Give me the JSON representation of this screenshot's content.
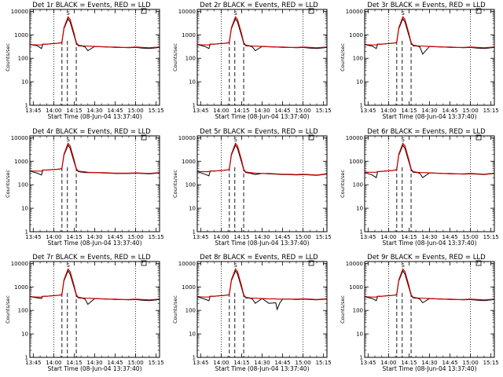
{
  "colors": {
    "events": "#000000",
    "lld": "#cc0000",
    "background": "#ffffff"
  },
  "shared": {
    "x_tick_labels": [
      "13:45",
      "14:00",
      "14:15",
      "14:30",
      "14:45",
      "15:00",
      "15:15"
    ],
    "x_ticks_minutes": [
      0,
      15,
      30,
      45,
      60,
      75,
      90
    ],
    "xlabel": "Start Time (08-Jun-04 13:37:40)",
    "ylabel": "Counts/sec",
    "y_tick_labels": [
      "1",
      "10",
      "100",
      "1000",
      "10000"
    ],
    "y_tick_values": [
      1,
      10,
      100,
      1000,
      10000
    ],
    "xlim_minutes": [
      -2.5,
      92.5
    ],
    "ylim": [
      1,
      12000
    ],
    "dotted_lines_minutes": [
      15,
      75
    ],
    "dashed_lines_minutes": [
      21,
      25,
      31.5
    ],
    "marker_S_label": "S",
    "marker_box_minutes": 81
  },
  "chart_data": [
    {
      "type": "line",
      "title": "Det 1r BLACK = Events, RED = LLD",
      "x": [
        -2.5,
        3,
        6,
        7,
        10,
        14,
        17,
        20,
        21,
        22.5,
        25.5,
        27,
        30,
        31.5,
        33,
        36,
        38,
        40,
        45,
        50,
        55,
        60,
        65,
        70,
        75,
        80,
        85,
        92.5
      ],
      "series": [
        {
          "name": "Events",
          "values": [
            380,
            340,
            260,
            400,
            400,
            420,
            430,
            450,
            480,
            1800,
            4800,
            3500,
            900,
            430,
            340,
            330,
            300,
            210,
            320,
            310,
            300,
            290,
            290,
            280,
            290,
            270,
            260,
            290
          ]
        },
        {
          "name": "LLD",
          "values": [
            380,
            370,
            370,
            400,
            400,
            420,
            430,
            450,
            490,
            2000,
            5800,
            4500,
            1100,
            460,
            360,
            340,
            330,
            330,
            320,
            310,
            300,
            300,
            290,
            290,
            300,
            290,
            280,
            300
          ]
        }
      ]
    },
    {
      "type": "line",
      "title": "Det 2r BLACK = Events, RED = LLD",
      "x": [
        -2.5,
        3,
        6,
        7,
        10,
        14,
        17,
        20,
        21,
        22.5,
        25.5,
        27,
        30,
        31.5,
        33,
        36,
        38,
        40,
        45,
        50,
        55,
        60,
        65,
        70,
        75,
        80,
        85,
        92.5
      ],
      "series": [
        {
          "name": "Events",
          "values": [
            380,
            320,
            260,
            400,
            400,
            420,
            430,
            450,
            480,
            1800,
            4800,
            3500,
            900,
            430,
            340,
            330,
            300,
            210,
            320,
            310,
            300,
            290,
            290,
            280,
            290,
            270,
            260,
            290
          ]
        },
        {
          "name": "LLD",
          "values": [
            380,
            370,
            370,
            400,
            400,
            420,
            430,
            450,
            490,
            2000,
            5800,
            4500,
            1100,
            460,
            360,
            340,
            330,
            330,
            320,
            310,
            300,
            300,
            290,
            290,
            300,
            290,
            280,
            300
          ]
        }
      ]
    },
    {
      "type": "line",
      "title": "Det 3r BLACK = Events, RED = LLD",
      "x": [
        -2.5,
        3,
        6,
        7,
        10,
        14,
        17,
        20,
        21,
        22.5,
        25.5,
        27,
        30,
        31.5,
        33,
        36,
        38,
        40,
        45,
        50,
        55,
        60,
        65,
        70,
        75,
        80,
        85,
        92.5
      ],
      "series": [
        {
          "name": "Events",
          "values": [
            380,
            330,
            260,
            400,
            400,
            420,
            430,
            450,
            480,
            1800,
            4800,
            3500,
            900,
            430,
            340,
            330,
            300,
            150,
            320,
            310,
            300,
            290,
            290,
            280,
            290,
            270,
            260,
            290
          ]
        },
        {
          "name": "LLD",
          "values": [
            380,
            370,
            370,
            400,
            400,
            420,
            430,
            450,
            490,
            2000,
            5800,
            4500,
            1100,
            460,
            360,
            340,
            330,
            330,
            320,
            310,
            300,
            300,
            290,
            290,
            300,
            290,
            280,
            300
          ]
        }
      ]
    },
    {
      "type": "line",
      "title": "Det 4r BLACK = Events, RED = LLD",
      "x": [
        -2.5,
        3,
        6,
        7,
        10,
        14,
        17,
        20,
        21,
        22.5,
        25.5,
        27,
        30,
        31.5,
        33,
        36,
        38,
        40,
        45,
        50,
        55,
        60,
        65,
        70,
        75,
        80,
        85,
        92.5
      ],
      "series": [
        {
          "name": "Events",
          "values": [
            380,
            310,
            260,
            420,
            420,
            440,
            450,
            470,
            500,
            1800,
            4800,
            3500,
            900,
            450,
            360,
            340,
            330,
            330,
            330,
            320,
            310,
            300,
            300,
            300,
            310,
            300,
            290,
            320
          ]
        },
        {
          "name": "LLD",
          "values": [
            380,
            380,
            380,
            420,
            420,
            440,
            450,
            470,
            510,
            2000,
            5800,
            4500,
            1100,
            480,
            380,
            360,
            350,
            340,
            330,
            330,
            320,
            310,
            310,
            310,
            320,
            310,
            300,
            330
          ]
        }
      ]
    },
    {
      "type": "line",
      "title": "Det 5r BLACK = Events, RED = LLD",
      "x": [
        -2.5,
        3,
        6,
        7,
        10,
        14,
        17,
        20,
        21,
        22.5,
        25.5,
        27,
        30,
        31.5,
        33,
        36,
        38,
        40,
        45,
        50,
        55,
        60,
        65,
        70,
        75,
        80,
        85,
        92.5
      ],
      "series": [
        {
          "name": "Events",
          "values": [
            360,
            280,
            240,
            380,
            380,
            400,
            410,
            430,
            460,
            1800,
            4800,
            3500,
            900,
            420,
            330,
            310,
            290,
            270,
            300,
            290,
            280,
            270,
            270,
            260,
            270,
            260,
            250,
            280
          ]
        },
        {
          "name": "LLD",
          "values": [
            360,
            360,
            360,
            380,
            380,
            400,
            410,
            430,
            470,
            2000,
            5800,
            4500,
            1100,
            450,
            350,
            330,
            320,
            310,
            300,
            300,
            290,
            280,
            280,
            270,
            280,
            270,
            260,
            290
          ]
        }
      ]
    },
    {
      "type": "line",
      "title": "Det 6r BLACK = Events, RED = LLD",
      "x": [
        -2.5,
        3,
        6,
        7,
        10,
        14,
        17,
        20,
        21,
        22.5,
        25.5,
        27,
        30,
        31.5,
        33,
        36,
        38,
        40,
        45,
        50,
        55,
        60,
        65,
        70,
        75,
        80,
        85,
        92.5
      ],
      "series": [
        {
          "name": "Events",
          "values": [
            340,
            260,
            200,
            360,
            370,
            390,
            400,
            420,
            450,
            1800,
            4800,
            3500,
            900,
            430,
            340,
            330,
            300,
            200,
            320,
            310,
            300,
            290,
            290,
            280,
            290,
            280,
            270,
            300
          ]
        },
        {
          "name": "LLD",
          "values": [
            340,
            340,
            340,
            360,
            370,
            390,
            400,
            420,
            460,
            2000,
            5800,
            4500,
            1100,
            460,
            360,
            340,
            330,
            330,
            320,
            310,
            300,
            300,
            290,
            290,
            300,
            290,
            280,
            310
          ]
        }
      ]
    },
    {
      "type": "line",
      "title": "Det 7r BLACK = Events, RED = LLD",
      "x": [
        -2.5,
        3,
        6,
        7,
        10,
        14,
        17,
        20,
        21,
        22.5,
        25.5,
        27,
        30,
        31.5,
        33,
        36,
        38,
        40,
        45,
        50,
        55,
        60,
        65,
        70,
        75,
        80,
        85,
        92.5
      ],
      "series": [
        {
          "name": "Events",
          "values": [
            380,
            340,
            320,
            400,
            400,
            420,
            430,
            450,
            480,
            1800,
            4800,
            3500,
            900,
            430,
            340,
            330,
            300,
            180,
            320,
            310,
            300,
            290,
            290,
            280,
            290,
            270,
            260,
            290
          ]
        },
        {
          "name": "LLD",
          "values": [
            380,
            370,
            370,
            400,
            400,
            420,
            430,
            450,
            490,
            2000,
            5800,
            4500,
            1100,
            460,
            360,
            340,
            330,
            330,
            320,
            310,
            300,
            300,
            290,
            290,
            300,
            290,
            280,
            300
          ]
        }
      ]
    },
    {
      "type": "line",
      "title": "Det 8r BLACK = Events, RED = LLD",
      "x": [
        -2.5,
        3,
        6,
        7,
        10,
        14,
        17,
        20,
        21,
        22.5,
        25.5,
        27,
        30,
        31.5,
        33,
        36,
        38,
        40,
        45,
        50,
        55,
        56,
        58,
        60,
        65,
        70,
        75,
        80,
        85,
        92.5
      ],
      "series": [
        {
          "name": "Events",
          "values": [
            380,
            300,
            260,
            400,
            400,
            420,
            430,
            450,
            480,
            1800,
            4800,
            3500,
            900,
            430,
            340,
            330,
            300,
            200,
            320,
            200,
            210,
            110,
            210,
            300,
            300,
            290,
            300,
            290,
            280,
            300
          ]
        },
        {
          "name": "LLD",
          "values": [
            380,
            370,
            370,
            400,
            400,
            420,
            430,
            450,
            490,
            2000,
            5800,
            4500,
            1100,
            460,
            360,
            340,
            330,
            330,
            320,
            310,
            310,
            300,
            300,
            300,
            300,
            300,
            310,
            300,
            290,
            310
          ]
        }
      ]
    },
    {
      "type": "line",
      "title": "Det 9r BLACK = Events, RED = LLD",
      "x": [
        -2.5,
        3,
        6,
        7,
        10,
        14,
        17,
        20,
        21,
        22.5,
        25.5,
        27,
        30,
        31.5,
        33,
        36,
        38,
        40,
        45,
        50,
        55,
        60,
        65,
        70,
        75,
        80,
        85,
        92.5
      ],
      "series": [
        {
          "name": "Events",
          "values": [
            380,
            320,
            260,
            400,
            400,
            420,
            430,
            450,
            480,
            1800,
            4800,
            3500,
            900,
            430,
            340,
            330,
            300,
            210,
            320,
            310,
            300,
            290,
            290,
            280,
            290,
            270,
            260,
            290
          ]
        },
        {
          "name": "LLD",
          "values": [
            380,
            370,
            370,
            400,
            400,
            420,
            430,
            450,
            490,
            2000,
            5800,
            4500,
            1100,
            460,
            360,
            340,
            330,
            330,
            320,
            310,
            300,
            300,
            290,
            290,
            300,
            290,
            280,
            300
          ]
        }
      ]
    }
  ]
}
